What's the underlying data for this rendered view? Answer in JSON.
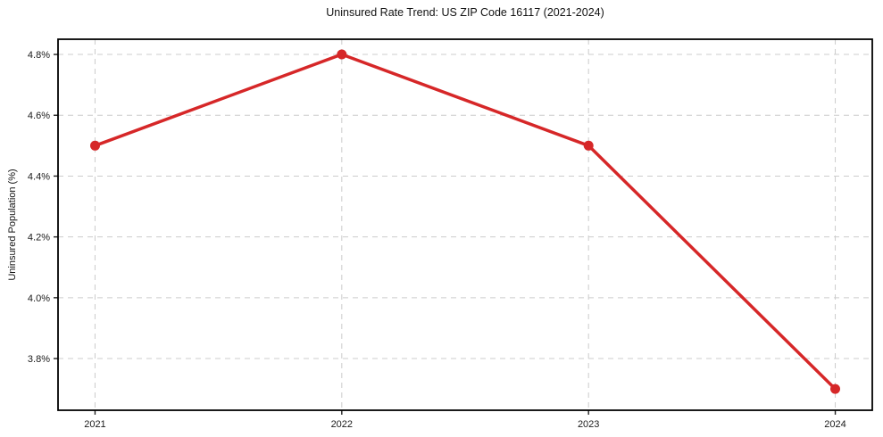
{
  "chart_data": {
    "type": "line",
    "title": "Uninsured Rate Trend: US ZIP Code 16117 (2021-2024)",
    "xlabel": "",
    "ylabel": "Uninsured Population (%)",
    "x": [
      2021,
      2022,
      2023,
      2024
    ],
    "values": [
      4.5,
      4.8,
      4.5,
      3.7
    ],
    "xticks": [
      {
        "value": 2021,
        "label": "2021"
      },
      {
        "value": 2022,
        "label": "2022"
      },
      {
        "value": 2023,
        "label": "2023"
      },
      {
        "value": 2024,
        "label": "2024"
      }
    ],
    "yticks": [
      {
        "value": 3.8,
        "label": "3.8%"
      },
      {
        "value": 4.0,
        "label": "4.0%"
      },
      {
        "value": 4.2,
        "label": "4.2%"
      },
      {
        "value": 4.4,
        "label": "4.4%"
      },
      {
        "value": 4.6,
        "label": "4.6%"
      },
      {
        "value": 4.8,
        "label": "4.8%"
      }
    ],
    "xlim": [
      2020.85,
      2024.15
    ],
    "ylim": [
      3.63,
      4.85
    ],
    "grid": true,
    "legend": "none",
    "line_color": "#d62728",
    "marker": "circle",
    "grid_color": "#cccccc"
  }
}
